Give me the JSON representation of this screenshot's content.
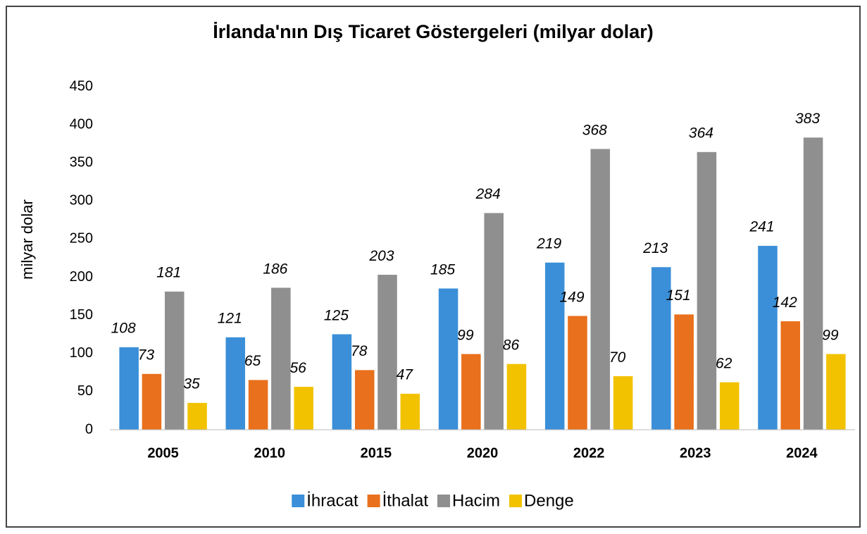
{
  "chart_data": {
    "type": "bar",
    "title": "İrlanda'nın Dış Ticaret Göstergeleri (milyar dolar)",
    "y_label": "milyar dolar",
    "categories": [
      "2005",
      "2010",
      "2015",
      "2020",
      "2022",
      "2023",
      "2024"
    ],
    "series": [
      {
        "name": "İhracat",
        "color": "#3a8fd8",
        "values": [
          108,
          121,
          125,
          185,
          219,
          213,
          241
        ]
      },
      {
        "name": "İthalat",
        "color": "#e9701c",
        "values": [
          73,
          65,
          78,
          99,
          149,
          151,
          142
        ]
      },
      {
        "name": "Hacim",
        "color": "#8f8f8f",
        "values": [
          181,
          186,
          203,
          284,
          368,
          364,
          383
        ]
      },
      {
        "name": "Denge",
        "color": "#f2c200",
        "values": [
          35,
          56,
          47,
          86,
          70,
          62,
          99
        ]
      }
    ],
    "ylim": [
      0,
      450
    ],
    "yticks": [
      0,
      50,
      100,
      150,
      200,
      250,
      300,
      350,
      400,
      450
    ],
    "grid": false,
    "legend": "bottom"
  }
}
